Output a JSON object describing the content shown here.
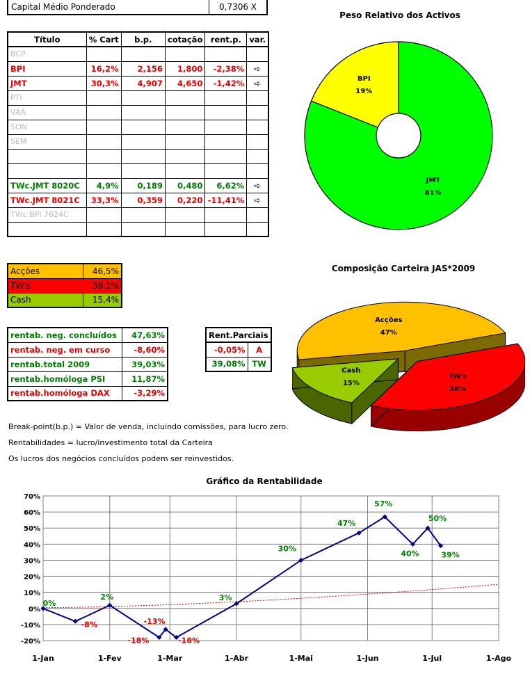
{
  "capital": {
    "label": "Capital Médio Ponderado",
    "value": "0,7306 X"
  },
  "main_table": {
    "headers": [
      "Título",
      "% Cart",
      "b.p.",
      "cotação",
      "rent.p.",
      "var."
    ],
    "rows": [
      {
        "title": "BCP",
        "pct": "",
        "bp": "",
        "cot": "",
        "rent": "",
        "var": "",
        "style": "gray"
      },
      {
        "title": "BPI",
        "pct": "16,2%",
        "bp": "2,156",
        "cot": "1,800",
        "rent": "-2,38%",
        "var": "➪",
        "style": "red"
      },
      {
        "title": "JMT",
        "pct": "30,3%",
        "bp": "4,907",
        "cot": "4,650",
        "rent": "-1,42%",
        "var": "➪",
        "style": "red"
      },
      {
        "title": "PTI",
        "pct": "",
        "bp": "",
        "cot": "",
        "rent": "",
        "var": "",
        "style": "gray"
      },
      {
        "title": "VAA",
        "pct": "",
        "bp": "",
        "cot": "",
        "rent": "",
        "var": "",
        "style": "gray"
      },
      {
        "title": "SON",
        "pct": "",
        "bp": "",
        "cot": "",
        "rent": "",
        "var": "",
        "style": "gray"
      },
      {
        "title": "SEM",
        "pct": "",
        "bp": "",
        "cot": "",
        "rent": "",
        "var": "",
        "style": "gray"
      },
      {
        "title": "",
        "pct": "",
        "bp": "",
        "cot": "",
        "rent": "",
        "var": "",
        "style": "gray"
      },
      {
        "title": "",
        "pct": "",
        "bp": "",
        "cot": "",
        "rent": "",
        "var": "",
        "style": "gray"
      },
      {
        "title": "TWc.JMT 8020C",
        "pct": "4,9%",
        "bp": "0,189",
        "cot": "0,480",
        "rent": "6,62%",
        "var": "➪",
        "style": "green"
      },
      {
        "title": "TWc.JMT 8021C",
        "pct": "33,3%",
        "bp": "0,359",
        "cot": "0,220",
        "rent": "-11,41%",
        "var": "➪",
        "style": "red"
      },
      {
        "title": "TWc.BPI 7624C",
        "pct": "",
        "bp": "",
        "cot": "",
        "rent": "",
        "var": "",
        "style": "gray"
      },
      {
        "title": "",
        "pct": "",
        "bp": "",
        "cot": "",
        "rent": "",
        "var": "",
        "style": "gray"
      }
    ]
  },
  "composition": [
    {
      "label": "Acções",
      "value": "46,5%",
      "bg": "#ffc000"
    },
    {
      "label": "TW's",
      "value": "38,1%",
      "bg": "#ff0000"
    },
    {
      "label": "Cash",
      "value": "15,4%",
      "bg": "#99cc00"
    }
  ],
  "returns": [
    {
      "label": "rentab. neg. concluídos",
      "value": "47,63%",
      "style": "green"
    },
    {
      "label": "rentab. neg. em curso",
      "value": "-8,60%",
      "style": "red"
    },
    {
      "label": "rentab.total 2009",
      "value": "39,03%",
      "style": "green"
    },
    {
      "label": "rentab.homóloga PSI",
      "value": "11,87%",
      "style": "green"
    },
    {
      "label": "rentab.homóloga DAX",
      "value": "-3,29%",
      "style": "red"
    }
  ],
  "partial": {
    "header": "Rent.Parciais",
    "rows": [
      {
        "value": "-0,05%",
        "code": "A",
        "style": "red"
      },
      {
        "value": "39,08%",
        "code": "TW",
        "style": "green"
      }
    ]
  },
  "notes": [
    "Break-point(b.p.) = Valor de venda, incluindo comissões, para lucro zero.",
    "Rentabilidades = lucro/investimento total da Carteira",
    "Os lucros dos negócios concluídos podem ser reinvestidos."
  ],
  "chart_data": [
    {
      "type": "pie",
      "variant": "donut",
      "title": "Peso Relativo dos Activos",
      "slices": [
        {
          "label": "BPI",
          "value": 19,
          "display": "19%",
          "color": "#ffff00"
        },
        {
          "label": "JMT",
          "value": 81,
          "display": "81%",
          "color": "#00ff00"
        }
      ]
    },
    {
      "type": "pie",
      "variant": "3d-exploded",
      "title": "Composição Carteira JAS*2009",
      "slices": [
        {
          "label": "Acções",
          "value": 47,
          "display": "47%",
          "color": "#ffc000"
        },
        {
          "label": "TW's",
          "value": 38,
          "display": "38%",
          "color": "#ff0000"
        },
        {
          "label": "Cash",
          "value": 15,
          "display": "15%",
          "color": "#99cc00"
        }
      ]
    },
    {
      "type": "line",
      "title": "Gráfico da Rentabilidade",
      "xticks": [
        "1-Jan",
        "1-Fev",
        "1-Mar",
        "1-Abr",
        "1-Mai",
        "1-Jun",
        "1-Jul",
        "1-Ago"
      ],
      "yticks": [
        "-20%",
        "-10%",
        "0%",
        "10%",
        "20%",
        "30%",
        "40%",
        "50%",
        "60%",
        "70%"
      ],
      "ylim": [
        -20,
        70
      ],
      "x_range": [
        "2009-01-01",
        "2009-08-01"
      ],
      "grid": true,
      "series": [
        {
          "color": "#000080",
          "points": [
            {
              "x": "2009-01-01",
              "y": 0
            },
            {
              "x": "2009-01-16",
              "y": -8
            },
            {
              "x": "2009-02-01",
              "y": 2
            },
            {
              "x": "2009-02-24",
              "y": -18
            },
            {
              "x": "2009-02-27",
              "y": -13
            },
            {
              "x": "2009-03-04",
              "y": -18
            },
            {
              "x": "2009-04-01",
              "y": 3
            },
            {
              "x": "2009-05-01",
              "y": 30
            },
            {
              "x": "2009-05-28",
              "y": 47
            },
            {
              "x": "2009-06-09",
              "y": 57
            },
            {
              "x": "2009-06-22",
              "y": 40
            },
            {
              "x": "2009-06-29",
              "y": 50
            },
            {
              "x": "2009-07-05",
              "y": 39
            }
          ]
        }
      ],
      "trendline": {
        "color": "#cc0000",
        "style": "dashed",
        "y_start": 0.5,
        "y_end": 15
      },
      "data_labels": [
        {
          "x": "2009-01-01",
          "y": 0,
          "text": "0%",
          "color": "#008000"
        },
        {
          "x": "2009-01-16",
          "y": -8,
          "text": "-8%",
          "color": "#e00000"
        },
        {
          "x": "2009-02-01",
          "y": 2,
          "text": "2%",
          "color": "#008000"
        },
        {
          "x": "2009-02-24",
          "y": -18,
          "text": "-18%",
          "color": "#e00000"
        },
        {
          "x": "2009-02-27",
          "y": -13,
          "text": "-13%",
          "color": "#e00000"
        },
        {
          "x": "2009-03-04",
          "y": -18,
          "text": "-18%",
          "color": "#e00000"
        },
        {
          "x": "2009-04-01",
          "y": 3,
          "text": "3%",
          "color": "#008000"
        },
        {
          "x": "2009-05-01",
          "y": 30,
          "text": "30%",
          "color": "#008000"
        },
        {
          "x": "2009-05-28",
          "y": 47,
          "text": "47%",
          "color": "#008000"
        },
        {
          "x": "2009-06-09",
          "y": 57,
          "text": "57%",
          "color": "#008000"
        },
        {
          "x": "2009-06-22",
          "y": 40,
          "text": "40%",
          "color": "#008000"
        },
        {
          "x": "2009-06-29",
          "y": 50,
          "text": "50%",
          "color": "#008000"
        },
        {
          "x": "2009-07-05",
          "y": 39,
          "text": "39%",
          "color": "#008000"
        }
      ]
    }
  ]
}
